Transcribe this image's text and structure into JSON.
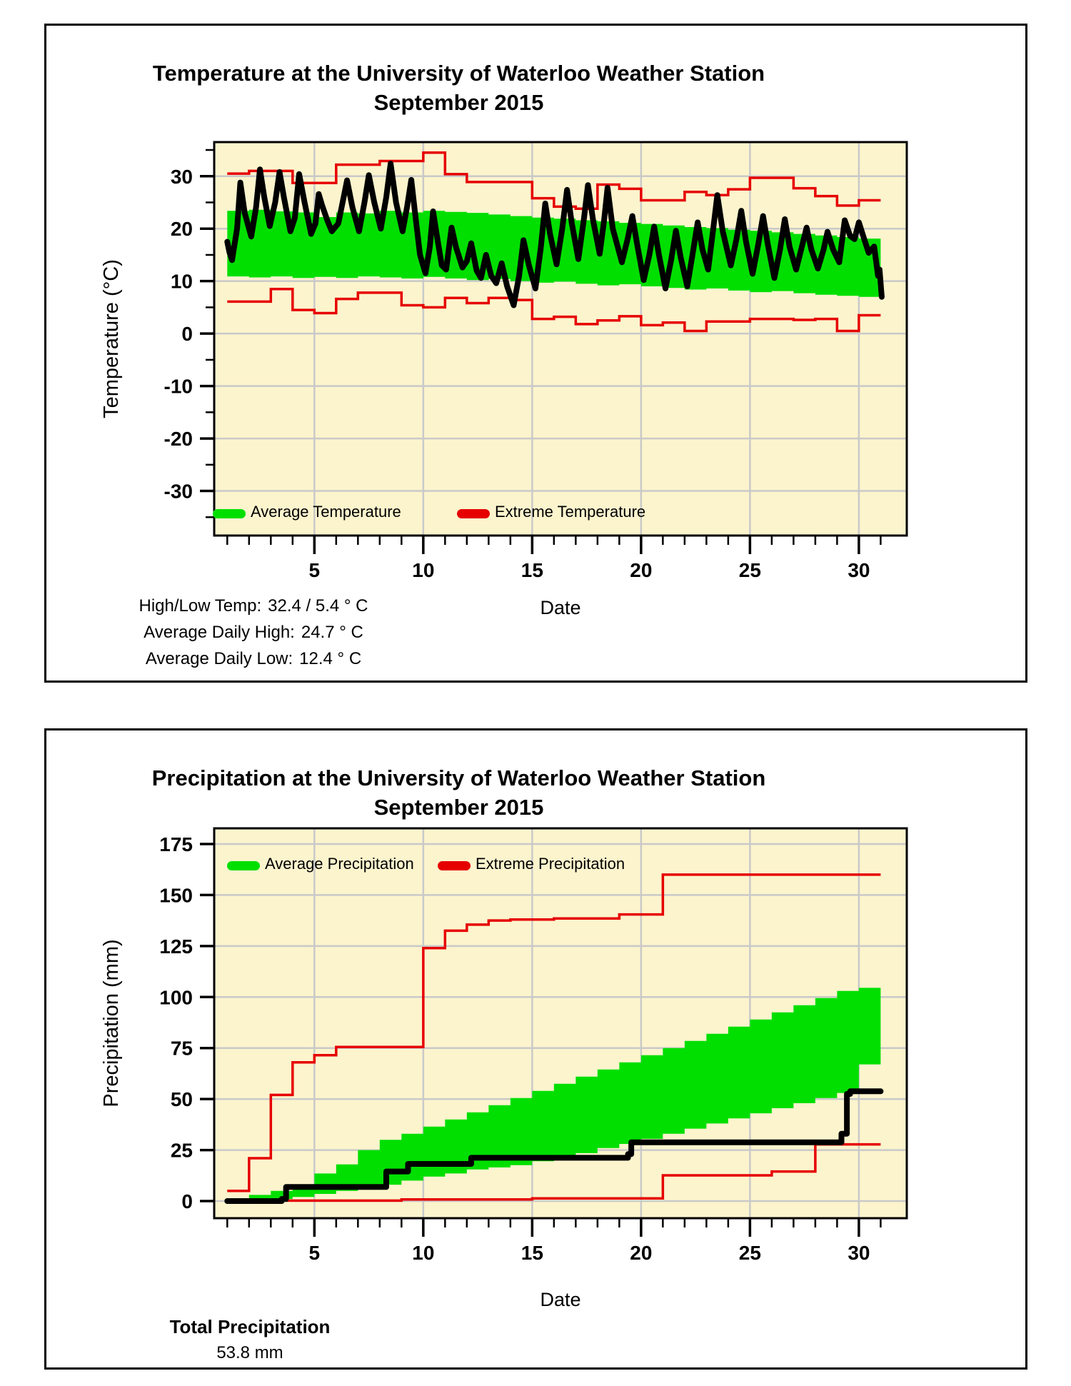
{
  "colors": {
    "page_background": "#FFFFFF",
    "plot_background": "#FCF4CD",
    "grid": "#C9C9C9",
    "green": "#00DF00",
    "red": "#E60000",
    "black": "#000000"
  },
  "temperature_panel": {
    "stats": [
      {
        "label": "High/Low Temp:",
        "value": "32.4 / 5.4 ° C"
      },
      {
        "label": "Average Daily High:",
        "value": "24.7 ° C"
      },
      {
        "label": "Average Daily Low:",
        "value": "12.4 ° C"
      }
    ]
  },
  "precipitation_panel": {
    "total_label": "Total Precipitation",
    "total_value": "53.8 mm"
  },
  "chart_data": [
    {
      "type": "line",
      "title": "Temperature at the University of Waterloo Weather Station",
      "subtitle": "September 2015",
      "xlabel": "Date",
      "ylabel": "Temperature (°C)",
      "xlim": [
        0.4,
        32.2
      ],
      "ylim": [
        -38.5,
        36.5
      ],
      "x_ticks_major": [
        5,
        10,
        15,
        20,
        25,
        30
      ],
      "y_ticks_major": [
        -30,
        -20,
        -10,
        0,
        10,
        20,
        30
      ],
      "y_minor_step": 5,
      "grid": true,
      "legend_position": "bottom-left-inside",
      "legend": [
        "Average Temperature",
        "Extreme Temperature"
      ],
      "series": [
        {
          "name": "average-temperature-band",
          "kind": "band",
          "color": "#00DF00",
          "start_day": 1,
          "upper": [
            23.4,
            23.6,
            23.3,
            23.1,
            22.2,
            23.1,
            22.9,
            23.4,
            23.1,
            23.4,
            23.2,
            23.0,
            22.7,
            22.4,
            22.1,
            21.9,
            21.6,
            21.4,
            21.1,
            20.9,
            20.6,
            20.3,
            20.1,
            19.8,
            19.6,
            19.3,
            19.0,
            18.7,
            18.4,
            18.1
          ],
          "lower": [
            10.9,
            10.7,
            10.9,
            10.6,
            10.8,
            10.6,
            10.9,
            10.7,
            10.5,
            10.8,
            10.5,
            10.2,
            10.4,
            10.0,
            9.7,
            9.9,
            9.5,
            9.2,
            9.4,
            9.0,
            8.7,
            8.4,
            8.6,
            8.2,
            7.9,
            8.1,
            7.7,
            7.4,
            7.2,
            7.0
          ]
        },
        {
          "name": "record-high-temperature",
          "kind": "step",
          "color": "#E60000",
          "width": 3.5,
          "start_day": 1,
          "values": [
            30.5,
            31.0,
            31.0,
            28.7,
            28.7,
            32.2,
            32.2,
            32.9,
            32.9,
            34.5,
            30.4,
            28.9,
            28.9,
            28.9,
            25.8,
            24.2,
            23.8,
            28.4,
            27.6,
            25.4,
            25.4,
            27.0,
            26.4,
            27.5,
            29.7,
            29.7,
            27.7,
            26.2,
            24.4,
            25.4
          ]
        },
        {
          "name": "record-low-temperature",
          "kind": "step",
          "color": "#E60000",
          "width": 3.5,
          "start_day": 1,
          "values": [
            6.1,
            6.1,
            8.5,
            4.5,
            3.9,
            6.6,
            7.8,
            7.8,
            5.4,
            5.0,
            6.8,
            5.8,
            6.8,
            6.4,
            2.8,
            3.2,
            1.8,
            2.5,
            3.3,
            1.6,
            2.1,
            0.5,
            2.3,
            2.3,
            2.8,
            2.8,
            2.6,
            2.8,
            0.5,
            3.5
          ]
        },
        {
          "name": "actual-temperature",
          "kind": "xy",
          "color": "#000000",
          "width": 8,
          "points": [
            [
              1.0,
              17.5
            ],
            [
              1.1,
              15.5
            ],
            [
              1.22,
              14.0
            ],
            [
              1.45,
              20.0
            ],
            [
              1.6,
              28.8
            ],
            [
              1.8,
              23.0
            ],
            [
              2.1,
              18.5
            ],
            [
              2.32,
              24.0
            ],
            [
              2.5,
              31.3
            ],
            [
              2.7,
              26.0
            ],
            [
              2.95,
              20.5
            ],
            [
              3.2,
              25.0
            ],
            [
              3.4,
              30.8
            ],
            [
              3.6,
              26.0
            ],
            [
              3.9,
              19.5
            ],
            [
              4.1,
              22.0
            ],
            [
              4.3,
              30.4
            ],
            [
              4.55,
              25.0
            ],
            [
              4.85,
              19.0
            ],
            [
              5.05,
              21.0
            ],
            [
              5.2,
              26.6
            ],
            [
              5.35,
              24.5
            ],
            [
              5.6,
              21.5
            ],
            [
              5.8,
              19.5
            ],
            [
              6.1,
              21.0
            ],
            [
              6.5,
              29.2
            ],
            [
              6.75,
              24.0
            ],
            [
              7.05,
              19.5
            ],
            [
              7.3,
              25.0
            ],
            [
              7.5,
              30.2
            ],
            [
              7.75,
              25.0
            ],
            [
              8.05,
              20.0
            ],
            [
              8.3,
              26.0
            ],
            [
              8.5,
              32.4
            ],
            [
              8.75,
              25.0
            ],
            [
              9.05,
              19.5
            ],
            [
              9.25,
              24.0
            ],
            [
              9.45,
              29.3
            ],
            [
              9.65,
              22.0
            ],
            [
              9.85,
              15.0
            ],
            [
              10.1,
              11.5
            ],
            [
              10.3,
              16.5
            ],
            [
              10.45,
              23.3
            ],
            [
              10.65,
              18.0
            ],
            [
              10.85,
              13.0
            ],
            [
              11.05,
              12.2
            ],
            [
              11.3,
              20.2
            ],
            [
              11.5,
              16.5
            ],
            [
              11.8,
              12.6
            ],
            [
              12.0,
              13.8
            ],
            [
              12.2,
              17.2
            ],
            [
              12.45,
              12.0
            ],
            [
              12.65,
              10.6
            ],
            [
              12.88,
              15.0
            ],
            [
              13.12,
              11.0
            ],
            [
              13.35,
              9.6
            ],
            [
              13.6,
              13.4
            ],
            [
              13.85,
              9.0
            ],
            [
              14.15,
              5.4
            ],
            [
              14.4,
              11.0
            ],
            [
              14.6,
              17.8
            ],
            [
              14.85,
              13.0
            ],
            [
              15.15,
              8.6
            ],
            [
              15.4,
              16.5
            ],
            [
              15.6,
              24.8
            ],
            [
              15.82,
              19.0
            ],
            [
              16.12,
              13.2
            ],
            [
              16.38,
              20.0
            ],
            [
              16.6,
              27.4
            ],
            [
              16.82,
              21.0
            ],
            [
              17.12,
              14.2
            ],
            [
              17.38,
              22.0
            ],
            [
              17.56,
              28.3
            ],
            [
              17.8,
              21.5
            ],
            [
              18.1,
              15.2
            ],
            [
              18.3,
              21.5
            ],
            [
              18.46,
              27.8
            ],
            [
              18.7,
              20.0
            ],
            [
              19.12,
              13.6
            ],
            [
              19.38,
              18.0
            ],
            [
              19.6,
              22.4
            ],
            [
              19.82,
              17.0
            ],
            [
              20.12,
              10.2
            ],
            [
              20.38,
              15.0
            ],
            [
              20.6,
              20.4
            ],
            [
              20.82,
              15.0
            ],
            [
              21.12,
              8.6
            ],
            [
              21.38,
              14.0
            ],
            [
              21.6,
              19.6
            ],
            [
              21.82,
              14.5
            ],
            [
              22.12,
              9.0
            ],
            [
              22.38,
              15.5
            ],
            [
              22.6,
              21.2
            ],
            [
              22.82,
              16.0
            ],
            [
              23.08,
              12.2
            ],
            [
              23.3,
              19.5
            ],
            [
              23.5,
              26.4
            ],
            [
              23.75,
              19.5
            ],
            [
              24.12,
              13.0
            ],
            [
              24.38,
              18.0
            ],
            [
              24.6,
              23.4
            ],
            [
              24.82,
              17.5
            ],
            [
              25.12,
              11.4
            ],
            [
              25.38,
              17.0
            ],
            [
              25.6,
              22.4
            ],
            [
              25.82,
              17.0
            ],
            [
              26.12,
              10.6
            ],
            [
              26.38,
              16.0
            ],
            [
              26.6,
              21.8
            ],
            [
              26.82,
              16.5
            ],
            [
              27.12,
              12.2
            ],
            [
              27.38,
              16.5
            ],
            [
              27.6,
              20.2
            ],
            [
              27.82,
              16.0
            ],
            [
              28.12,
              12.4
            ],
            [
              28.38,
              16.0
            ],
            [
              28.56,
              19.4
            ],
            [
              28.82,
              16.0
            ],
            [
              29.1,
              13.6
            ],
            [
              29.35,
              21.6
            ],
            [
              29.6,
              18.6
            ],
            [
              29.8,
              18.0
            ],
            [
              30.0,
              21.2
            ],
            [
              30.2,
              18.6
            ],
            [
              30.45,
              15.4
            ],
            [
              30.7,
              16.6
            ],
            [
              30.88,
              11.0
            ],
            [
              30.95,
              12.2
            ],
            [
              31.05,
              7.0
            ]
          ]
        }
      ]
    },
    {
      "type": "line",
      "title": "Precipitation at the University of Waterloo Weather Station",
      "subtitle": "September 2015",
      "xlabel": "Date",
      "ylabel": "Precipitation (mm)",
      "xlim": [
        0.4,
        32.2
      ],
      "ylim": [
        -8.4,
        182.7
      ],
      "x_ticks_major": [
        5,
        10,
        15,
        20,
        25,
        30
      ],
      "y_ticks_major": [
        0,
        25,
        50,
        75,
        100,
        125,
        150,
        175
      ],
      "y_minor_step": 0,
      "grid": true,
      "legend_position": "top-left-inside",
      "legend": [
        "Average Precipitation",
        "Extreme Precipitation"
      ],
      "series": [
        {
          "name": "average-precipitation-band",
          "kind": "band",
          "color": "#00DF00",
          "start_day": 1,
          "upper": [
            0.8,
            3,
            5,
            8,
            13.5,
            18,
            25,
            30,
            33,
            36.5,
            40,
            43.5,
            47,
            50.5,
            54,
            57.5,
            61,
            64.5,
            68,
            71.5,
            75,
            78.5,
            82,
            85.5,
            89,
            92.5,
            96,
            99.5,
            103,
            104.5
          ],
          "lower": [
            0,
            0.5,
            1,
            2,
            3.5,
            5,
            6.5,
            8,
            10,
            12,
            13.5,
            15.5,
            16.5,
            17.6,
            19.5,
            21.5,
            23.5,
            26,
            28,
            30.5,
            33,
            35.5,
            38,
            40.5,
            43,
            45.5,
            48,
            50.5,
            53,
            67
          ]
        },
        {
          "name": "record-high-precipitation",
          "kind": "step",
          "color": "#E60000",
          "width": 3.5,
          "start_day": 1,
          "values": [
            5,
            21,
            52,
            68,
            71.5,
            75.5,
            75.5,
            75.5,
            75.5,
            124,
            132.5,
            135.5,
            137.5,
            138,
            138,
            138.5,
            138.5,
            138.5,
            140.5,
            140.5,
            160,
            160,
            160,
            160,
            160,
            160,
            160,
            160,
            160,
            160
          ]
        },
        {
          "name": "record-low-precipitation",
          "kind": "step",
          "color": "#E60000",
          "width": 3.5,
          "start_day": 1,
          "values": [
            0.2,
            0.2,
            0.2,
            0.2,
            0.2,
            0.2,
            0.2,
            0.2,
            0.8,
            0.8,
            0.8,
            0.8,
            0.8,
            0.8,
            1.3,
            1.3,
            1.3,
            1.3,
            1.3,
            1.3,
            12.6,
            12.6,
            12.6,
            12.6,
            12.6,
            14.5,
            14.5,
            27.8,
            27.8,
            27.8
          ]
        },
        {
          "name": "actual-precipitation",
          "kind": "xy",
          "color": "#000000",
          "width": 8,
          "points": [
            [
              1.0,
              0
            ],
            [
              3.5,
              0
            ],
            [
              3.5,
              1
            ],
            [
              3.7,
              1
            ],
            [
              3.7,
              6.9
            ],
            [
              8.3,
              6.9
            ],
            [
              8.3,
              14.5
            ],
            [
              9.3,
              14.5
            ],
            [
              9.3,
              18.2
            ],
            [
              12.2,
              18.2
            ],
            [
              12.2,
              21.2
            ],
            [
              19.4,
              21.2
            ],
            [
              19.4,
              23
            ],
            [
              19.55,
              23
            ],
            [
              19.55,
              28.8
            ],
            [
              29.2,
              28.8
            ],
            [
              29.2,
              33
            ],
            [
              29.45,
              33
            ],
            [
              29.45,
              52.5
            ],
            [
              29.6,
              52.5
            ],
            [
              29.6,
              53.8
            ],
            [
              31.0,
              53.8
            ]
          ]
        }
      ]
    }
  ]
}
